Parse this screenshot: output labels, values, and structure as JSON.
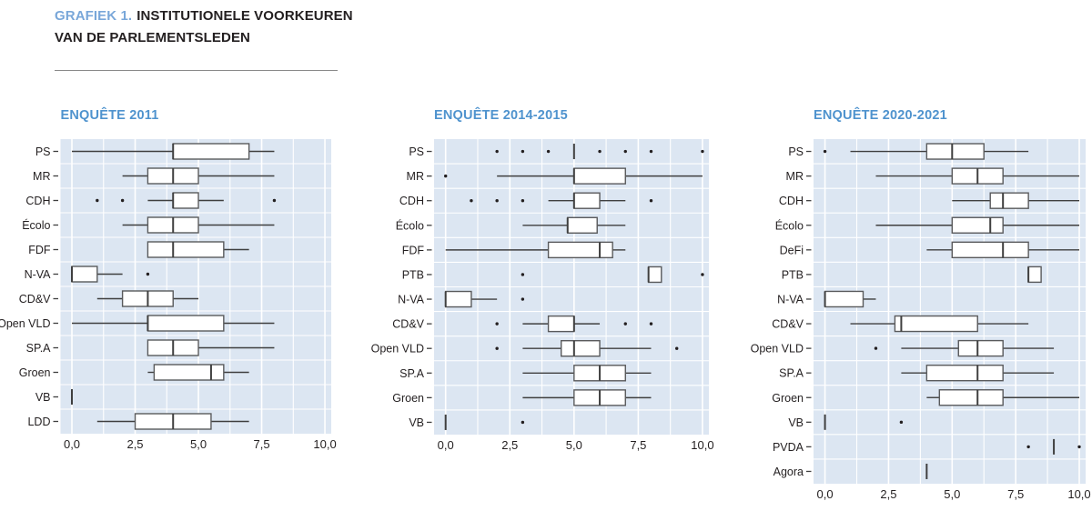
{
  "header": {
    "label": "GRAFIEK 1.",
    "title_line1": "INSTITUTIONELE VOORKEUREN",
    "title_line2": "VAN DE PARLEMENTSLEDEN"
  },
  "colors": {
    "header_accent": "#79a7d9",
    "panel_title": "#4f93ce",
    "text": "#231f20",
    "plot_bg": "#dce6f2",
    "grid": "#ffffff",
    "box_fill": "#ffffff",
    "box_stroke": "#595a5c",
    "line": "#3f3f3f",
    "outlier": "#231f20"
  },
  "chart_data": [
    {
      "type": "box",
      "id": "2011",
      "title": "ENQUÊTE 2011",
      "xlim": [
        0,
        10
      ],
      "xticks": [
        "0,0",
        "2,5",
        "5,0",
        "7,5",
        "10,0"
      ],
      "xtick_values": [
        0,
        2.5,
        5,
        7.5,
        10
      ],
      "grid": "white major+minor every 1.25 on light blue",
      "rows": [
        {
          "party": "PS",
          "min": 0,
          "q1": 4,
          "med": 4,
          "q3": 7,
          "max": 8,
          "outliers": []
        },
        {
          "party": "MR",
          "min": 2,
          "q1": 3,
          "med": 4,
          "q3": 5,
          "max": 8,
          "outliers": []
        },
        {
          "party": "CDH",
          "min": 3,
          "q1": 4,
          "med": 4,
          "q3": 5,
          "max": 6,
          "outliers": [
            1,
            2,
            8
          ]
        },
        {
          "party": "Écolo",
          "min": 2,
          "q1": 3,
          "med": 4,
          "q3": 5,
          "max": 8,
          "outliers": []
        },
        {
          "party": "FDF",
          "min": 3,
          "q1": 3,
          "med": 4,
          "q3": 6,
          "max": 7,
          "outliers": []
        },
        {
          "party": "N-VA",
          "min": 0,
          "q1": 0,
          "med": 0,
          "q3": 1,
          "max": 2,
          "outliers": [
            3
          ]
        },
        {
          "party": "CD&V",
          "min": 1,
          "q1": 2,
          "med": 3,
          "q3": 4,
          "max": 5,
          "outliers": []
        },
        {
          "party": "Open VLD",
          "min": 0,
          "q1": 3,
          "med": 3,
          "q3": 6,
          "max": 8,
          "outliers": []
        },
        {
          "party": "SP.A",
          "min": 3,
          "q1": 3,
          "med": 4,
          "q3": 5,
          "max": 8,
          "outliers": []
        },
        {
          "party": "Groen",
          "min": 3,
          "q1": 3.25,
          "med": 5.5,
          "q3": 6,
          "max": 7,
          "outliers": []
        },
        {
          "party": "VB",
          "min": 0,
          "q1": 0,
          "med": 0,
          "q3": 0,
          "max": 0,
          "outliers": []
        },
        {
          "party": "LDD",
          "min": 1,
          "q1": 2.5,
          "med": 4,
          "q3": 5.5,
          "max": 7,
          "outliers": []
        }
      ]
    },
    {
      "type": "box",
      "id": "2014-2015",
      "title": "ENQUÊTE 2014-2015",
      "xlim": [
        0,
        10
      ],
      "xticks": [
        "0,0",
        "2,5",
        "5,0",
        "7,5",
        "10,0"
      ],
      "xtick_values": [
        0,
        2.5,
        5,
        7.5,
        10
      ],
      "grid": "white major+minor every 1.25 on light blue",
      "rows": [
        {
          "party": "PS",
          "min": 5,
          "q1": 5,
          "med": 5,
          "q3": 5,
          "max": 5,
          "outliers": [
            2,
            3,
            4,
            6,
            7,
            8,
            10
          ]
        },
        {
          "party": "MR",
          "min": 2,
          "q1": 5,
          "med": 5,
          "q3": 7,
          "max": 10,
          "outliers": [
            0
          ]
        },
        {
          "party": "CDH",
          "min": 4,
          "q1": 5,
          "med": 5,
          "q3": 6,
          "max": 7,
          "outliers": [
            1,
            2,
            3,
            8
          ]
        },
        {
          "party": "Écolo",
          "min": 3,
          "q1": 4.75,
          "med": 4.75,
          "q3": 5.9,
          "max": 7,
          "outliers": []
        },
        {
          "party": "FDF",
          "min": 0,
          "q1": 4,
          "med": 6,
          "q3": 6.5,
          "max": 7,
          "outliers": []
        },
        {
          "party": "PTB",
          "min": 7.9,
          "q1": 7.9,
          "med": 7.9,
          "q3": 8.4,
          "max": 8.4,
          "outliers": [
            3,
            10
          ]
        },
        {
          "party": "N-VA",
          "min": 0,
          "q1": 0,
          "med": 0,
          "q3": 1,
          "max": 2,
          "outliers": [
            3
          ]
        },
        {
          "party": "CD&V",
          "min": 3,
          "q1": 4,
          "med": 5,
          "q3": 5,
          "max": 6,
          "outliers": [
            2,
            7,
            8
          ]
        },
        {
          "party": "Open VLD",
          "min": 3,
          "q1": 4.5,
          "med": 5,
          "q3": 6,
          "max": 8,
          "outliers": [
            2,
            9
          ]
        },
        {
          "party": "SP.A",
          "min": 3,
          "q1": 5,
          "med": 6,
          "q3": 7,
          "max": 8,
          "outliers": []
        },
        {
          "party": "Groen",
          "min": 3,
          "q1": 5,
          "med": 6,
          "q3": 7,
          "max": 8,
          "outliers": []
        },
        {
          "party": "VB",
          "min": 0,
          "q1": 0,
          "med": 0,
          "q3": 0,
          "max": 0,
          "outliers": [
            3
          ]
        }
      ]
    },
    {
      "type": "box",
      "id": "2020-2021",
      "title": "ENQUÊTE 2020-2021",
      "xlim": [
        0,
        10
      ],
      "xticks": [
        "0,0",
        "2,5",
        "5,0",
        "7,5",
        "10,0"
      ],
      "xtick_values": [
        0,
        2.5,
        5,
        7.5,
        10
      ],
      "grid": "white major+minor every 1.25 on light blue",
      "rows": [
        {
          "party": "PS",
          "min": 1,
          "q1": 4,
          "med": 5,
          "q3": 6.25,
          "max": 8,
          "outliers": [
            0
          ]
        },
        {
          "party": "MR",
          "min": 2,
          "q1": 5,
          "med": 6,
          "q3": 7,
          "max": 10,
          "outliers": []
        },
        {
          "party": "CDH",
          "min": 5,
          "q1": 6.5,
          "med": 7,
          "q3": 8,
          "max": 10,
          "outliers": []
        },
        {
          "party": "Écolo",
          "min": 2,
          "q1": 5,
          "med": 6.5,
          "q3": 7,
          "max": 10,
          "outliers": []
        },
        {
          "party": "DeFi",
          "min": 4,
          "q1": 5,
          "med": 7,
          "q3": 8,
          "max": 10,
          "outliers": []
        },
        {
          "party": "PTB",
          "min": 8,
          "q1": 8,
          "med": 8,
          "q3": 8.5,
          "max": 8.5,
          "outliers": []
        },
        {
          "party": "N-VA",
          "min": 0,
          "q1": 0,
          "med": 0,
          "q3": 1.5,
          "max": 2,
          "outliers": []
        },
        {
          "party": "CD&V",
          "min": 1,
          "q1": 2.75,
          "med": 3,
          "q3": 6,
          "max": 8,
          "outliers": []
        },
        {
          "party": "Open VLD",
          "min": 3,
          "q1": 5.25,
          "med": 6,
          "q3": 7,
          "max": 9,
          "outliers": [
            2
          ]
        },
        {
          "party": "SP.A",
          "min": 3,
          "q1": 4,
          "med": 6,
          "q3": 7,
          "max": 9,
          "outliers": []
        },
        {
          "party": "Groen",
          "min": 4,
          "q1": 4.5,
          "med": 6,
          "q3": 7,
          "max": 10,
          "outliers": []
        },
        {
          "party": "VB",
          "min": 0,
          "q1": 0,
          "med": 0,
          "q3": 0,
          "max": 0,
          "outliers": [
            3
          ]
        },
        {
          "party": "PVDA",
          "min": 9,
          "q1": 9,
          "med": 9,
          "q3": 9,
          "max": 9,
          "outliers": [
            8,
            10
          ]
        },
        {
          "party": "Agora",
          "min": 4,
          "q1": 4,
          "med": 4,
          "q3": 4,
          "max": 4,
          "outliers": []
        }
      ]
    }
  ]
}
